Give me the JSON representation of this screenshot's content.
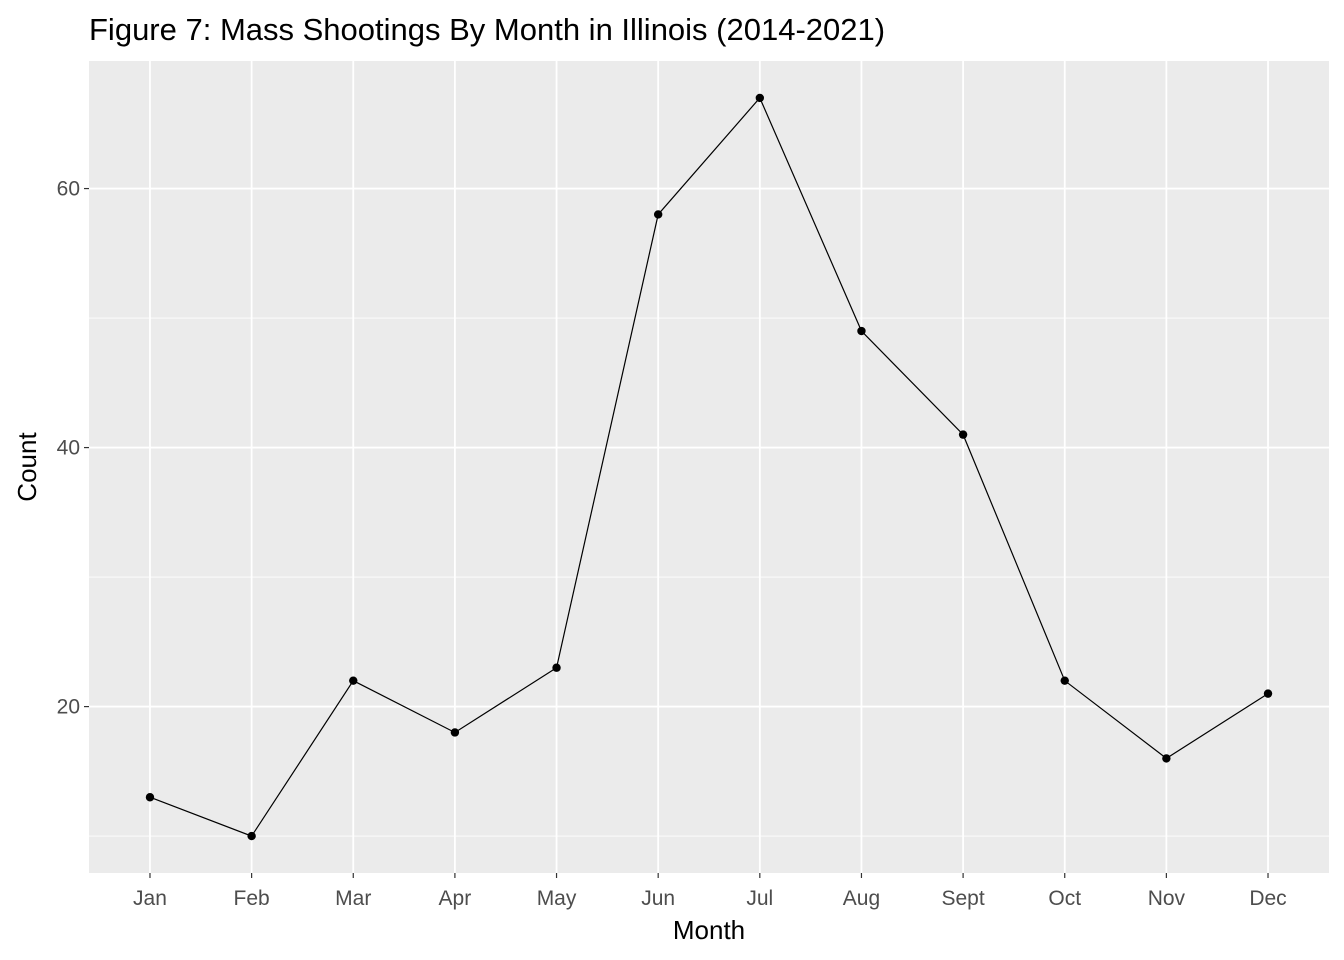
{
  "chart_data": {
    "type": "line",
    "title": "Figure 7: Mass Shootings By Month in Illinois (2014-2021)",
    "xlabel": "Month",
    "ylabel": "Count",
    "categories": [
      "Jan",
      "Feb",
      "Mar",
      "Apr",
      "May",
      "Jun",
      "Jul",
      "Aug",
      "Sept",
      "Oct",
      "Nov",
      "Dec"
    ],
    "values": [
      13,
      10,
      22,
      18,
      23,
      58,
      67,
      49,
      41,
      22,
      16,
      21
    ],
    "ylim": [
      7.15,
      69.85
    ],
    "y_ticks": [
      20,
      40,
      60
    ],
    "y_minor_ticks": [
      10,
      30,
      50
    ],
    "y_tick_labels": [
      "20",
      "40",
      "60"
    ],
    "grid": true,
    "legend": "none",
    "markers": "points",
    "colors": {
      "panel_background": "#ebebeb",
      "grid_line": "#ffffff",
      "series_line": "#000000",
      "tick_label": "#4d4d4d",
      "tick_mark": "#333333"
    }
  }
}
